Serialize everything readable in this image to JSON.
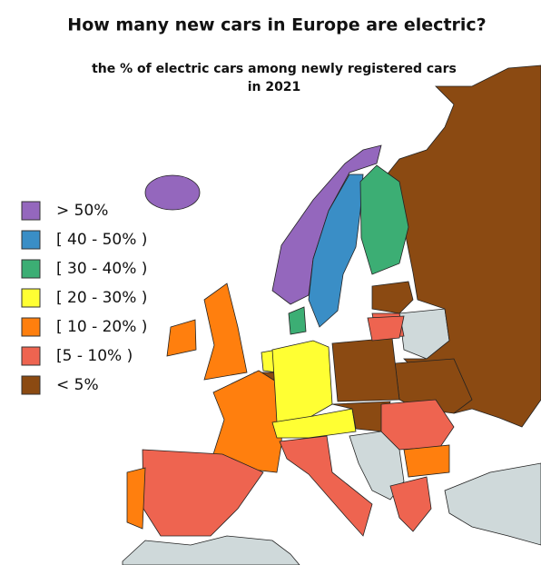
{
  "title": "How many new cars in Europe are electric?",
  "subtitle": [
    "the % of electric cars among newly registered cars",
    "in 2021"
  ],
  "legend": [
    {
      "label": "> 50%",
      "color": "#9467bd"
    },
    {
      "label": "[ 40 - 50% )",
      "color": "#3a8ec6"
    },
    {
      "label": "[ 30 - 40% )",
      "color": "#3cae74"
    },
    {
      "label": "[ 20 - 30% )",
      "color": "#ffff33"
    },
    {
      "label": "[ 10 - 20% )",
      "color": "#ff7f0e"
    },
    {
      "label": "[5 - 10% )",
      "color": "#ee6450"
    },
    {
      "label": "< 5%",
      "color": "#8b4a12"
    }
  ],
  "other_color": "#cfd9da"
}
